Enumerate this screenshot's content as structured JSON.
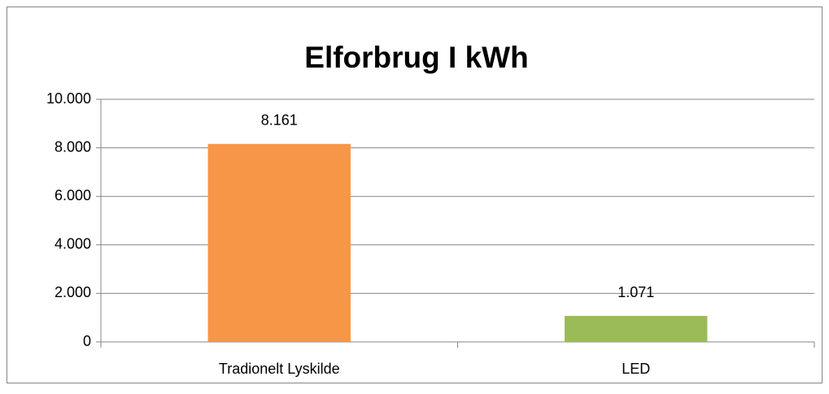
{
  "chart_data": {
    "type": "bar",
    "title": "Elforbrug I kWh",
    "categories": [
      "Tradionelt Lyskilde",
      "LED"
    ],
    "values": [
      8161,
      1071
    ],
    "value_labels": [
      "8.161",
      "1.071"
    ],
    "colors": [
      "#f79646",
      "#9bbb59"
    ],
    "ylim": [
      0,
      10000
    ],
    "yticks": [
      0,
      {
        "value": 2000,
        "label": "2.000"
      },
      {
        "value": 4000,
        "label": "4.000"
      },
      {
        "value": 6000,
        "label": "6.000"
      },
      {
        "value": 8000,
        "label": "8.000"
      },
      {
        "value": 10000,
        "label": "10.000"
      }
    ],
    "grid": true
  }
}
